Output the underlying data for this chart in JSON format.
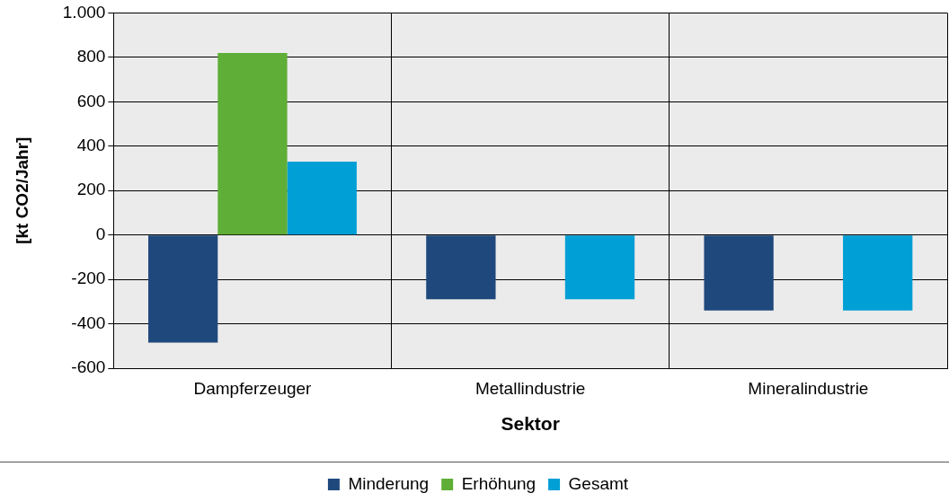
{
  "chart_data": {
    "type": "bar",
    "xlabel": "Sektor",
    "ylabel": "[kt CO2/Jahr]",
    "categories": [
      "Dampferzeuger",
      "Metallindustrie",
      "Mineralindustrie"
    ],
    "series": [
      {
        "name": "Minderung",
        "color": "#1f497d",
        "values": [
          -485,
          -290,
          -340
        ]
      },
      {
        "name": "Erhöhung",
        "color": "#5fae37",
        "values": [
          820,
          0,
          0
        ]
      },
      {
        "name": "Gesamt",
        "color": "#009fd6",
        "values": [
          330,
          -290,
          -340
        ]
      }
    ],
    "ylim": [
      -600,
      1000
    ],
    "yticks": [
      -600,
      -400,
      -200,
      0,
      200,
      400,
      600,
      800,
      {
        "value": 1000,
        "label": "1.000"
      }
    ],
    "grid": true,
    "legend": "bottom"
  }
}
